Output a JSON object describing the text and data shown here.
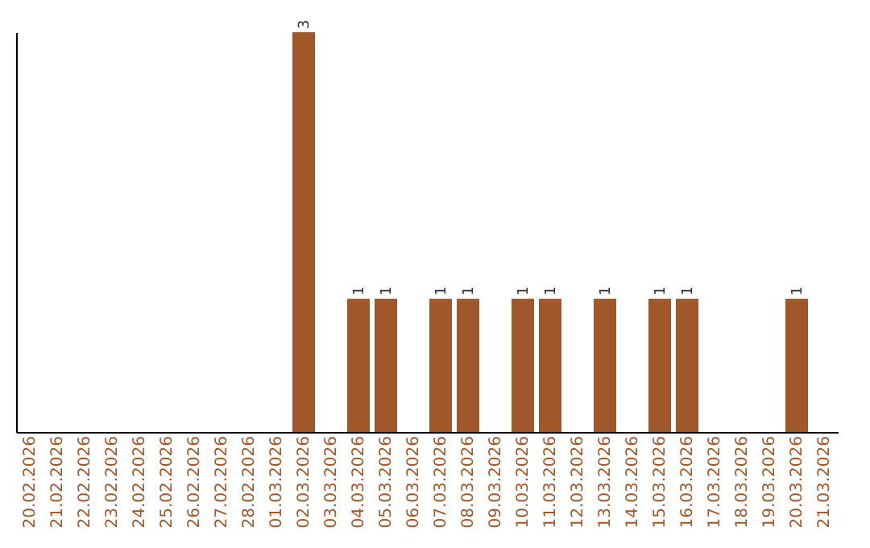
{
  "chart_data": {
    "type": "bar",
    "categories": [
      "20.02.2026",
      "21.02.2026",
      "22.02.2026",
      "23.02.2026",
      "24.02.2026",
      "25.02.2026",
      "26.02.2026",
      "27.02.2026",
      "28.02.2026",
      "01.03.2026",
      "02.03.2026",
      "03.03.2026",
      "04.03.2026",
      "05.03.2026",
      "06.03.2026",
      "07.03.2026",
      "08.03.2026",
      "09.03.2026",
      "10.03.2026",
      "11.03.2026",
      "12.03.2026",
      "13.03.2026",
      "14.03.2026",
      "15.03.2026",
      "16.03.2026",
      "17.03.2026",
      "18.03.2026",
      "19.03.2026",
      "20.03.2026",
      "21.03.2026"
    ],
    "values": [
      0,
      0,
      0,
      0,
      0,
      0,
      0,
      0,
      0,
      0,
      3,
      0,
      1,
      1,
      0,
      1,
      1,
      0,
      1,
      1,
      0,
      1,
      0,
      1,
      1,
      0,
      0,
      0,
      1,
      0
    ],
    "value_labels": [
      null,
      null,
      null,
      null,
      null,
      null,
      null,
      null,
      null,
      null,
      "3",
      null,
      "1",
      "1",
      null,
      "1",
      "1",
      null,
      "1",
      "1",
      null,
      "1",
      null,
      "1",
      "1",
      null,
      null,
      null,
      "1",
      null
    ],
    "color": "#a0572a",
    "grid": false,
    "tick_labels": "x"
  }
}
